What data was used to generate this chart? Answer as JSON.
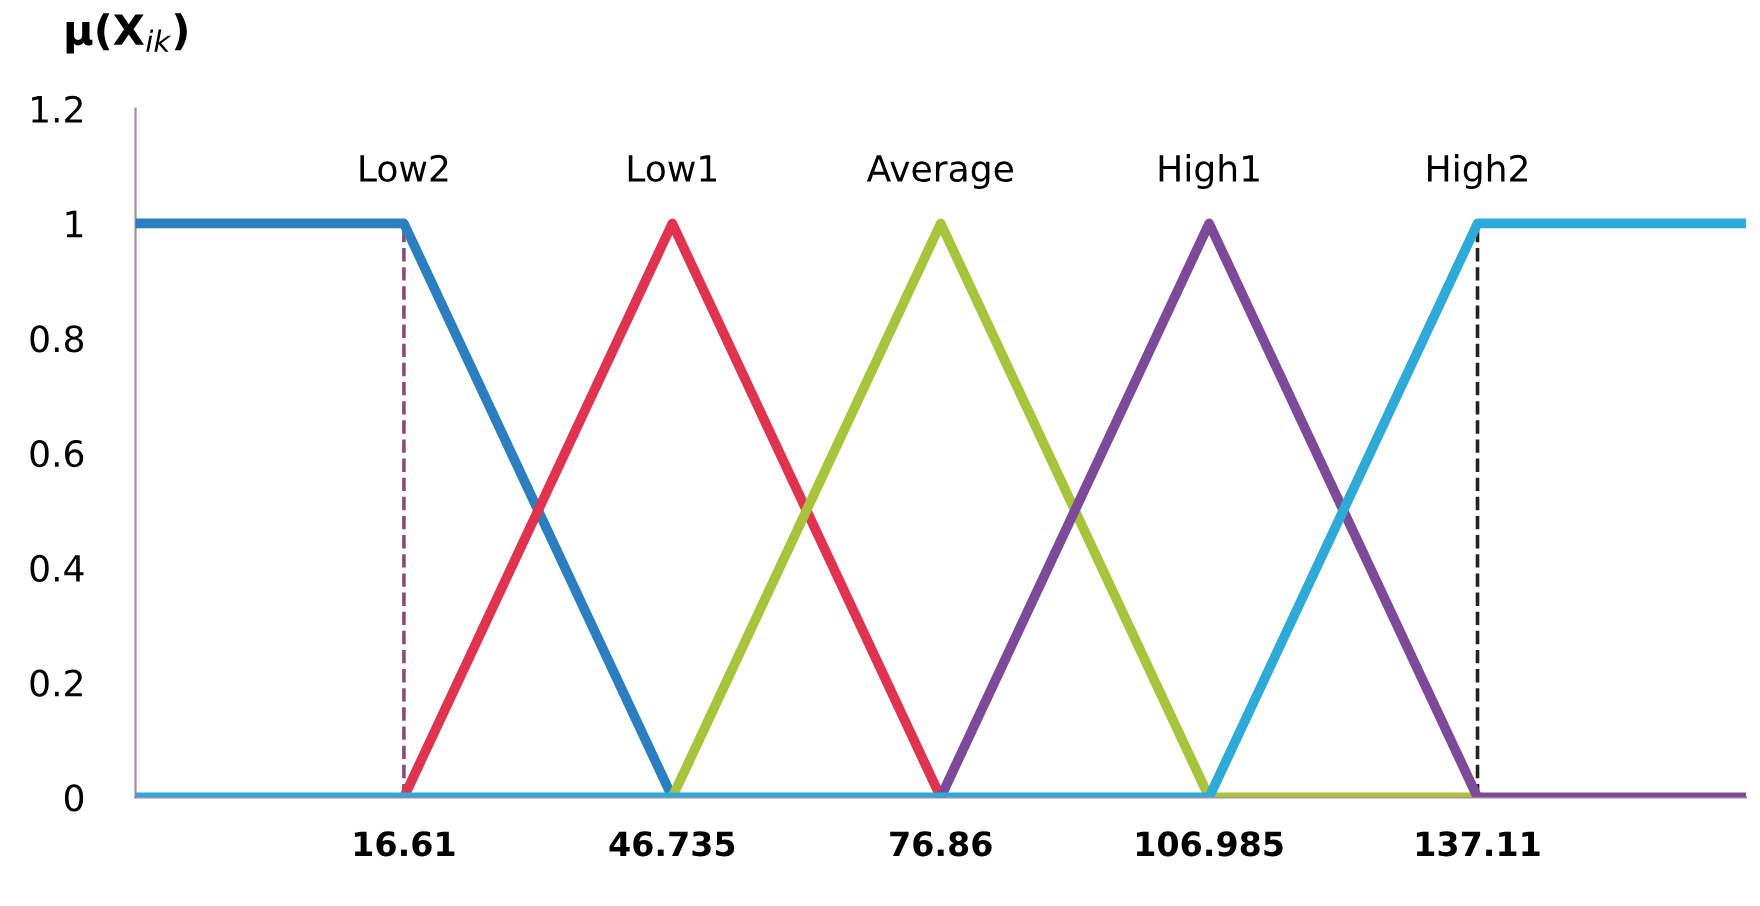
{
  "chart_data": {
    "type": "line",
    "ylabel": "μ(X$_{ik}$)",
    "xlim": [
      -13.515,
      167.235
    ],
    "ylim": [
      0,
      1.2
    ],
    "xticks": [
      16.61,
      46.735,
      76.86,
      106.985,
      137.11
    ],
    "yticks": [
      0,
      0.2,
      0.4,
      0.6,
      0.8,
      1,
      1.2
    ],
    "grid": false,
    "legend": false,
    "marker": "none",
    "line_style": "solid",
    "series": [
      {
        "name": "Low2",
        "color": "#2b7fc0",
        "x": [
          -13.515,
          16.61,
          46.735
        ],
        "values": [
          1,
          1,
          0
        ]
      },
      {
        "name": "Low1",
        "color": "#e0334f",
        "x": [
          16.61,
          46.735,
          76.86
        ],
        "values": [
          0,
          1,
          0
        ]
      },
      {
        "name": "Average",
        "color": "#a8c43c",
        "x": [
          46.735,
          76.86,
          106.985,
          137.11
        ],
        "values": [
          0,
          1,
          0,
          0
        ]
      },
      {
        "name": "High1",
        "color": "#7d4a9a",
        "x": [
          76.86,
          106.985,
          137.11,
          167.235
        ],
        "values": [
          0,
          1,
          0,
          0
        ]
      },
      {
        "name": "High2",
        "color": "#2eaad8",
        "x": [
          -13.515,
          106.985,
          137.11,
          167.235
        ],
        "values": [
          0,
          0,
          1,
          1
        ]
      }
    ],
    "ref_lines": [
      {
        "axis": "x",
        "value": 16.61,
        "color": "#8a4a7a",
        "line_style": "dashed"
      },
      {
        "axis": "x",
        "value": 137.11,
        "color": "#222222",
        "line_style": "dashed"
      }
    ]
  }
}
